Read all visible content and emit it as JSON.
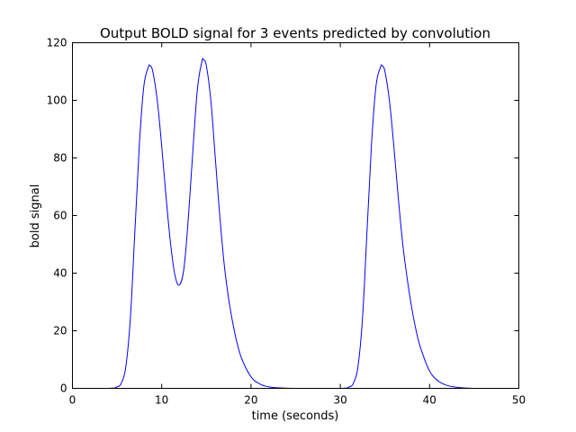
{
  "chart_data": {
    "type": "line",
    "title": "Output BOLD signal for 3 events predicted by convolution",
    "xlabel": "time (seconds)",
    "ylabel": "bold signal",
    "xlim": [
      0,
      50
    ],
    "ylim": [
      0,
      120
    ],
    "xticks": [
      0,
      10,
      20,
      30,
      40,
      50
    ],
    "yticks": [
      0,
      20,
      40,
      60,
      80,
      100,
      120
    ],
    "grid": false,
    "legend": "none",
    "series_color": "#0000ff",
    "series": [
      {
        "x": [
          0,
          4,
          5,
          5.5,
          6,
          6.5,
          7,
          7.5,
          8,
          8.5,
          8.7,
          9,
          9.5,
          10,
          10.5,
          11,
          11.5,
          12,
          12.5,
          13,
          13.5,
          14,
          14.5,
          14.7,
          15,
          15.5,
          16,
          16.5,
          17,
          17.5,
          18,
          18.5,
          19,
          20,
          21,
          22,
          23,
          25,
          30,
          31,
          31.5,
          32,
          32.5,
          33,
          33.5,
          34,
          34.5,
          34.7,
          35,
          35.5,
          36,
          36.5,
          37,
          37.5,
          38,
          38.5,
          39,
          40,
          41,
          42,
          43,
          45,
          50
        ],
        "y": [
          0,
          0,
          0.5,
          2,
          8,
          25,
          55,
          85,
          105,
          111.5,
          112,
          110,
          100,
          84,
          66,
          50,
          39,
          36,
          42,
          60,
          83,
          104,
          113.5,
          114,
          112,
          100,
          80,
          60,
          43,
          31,
          22,
          15,
          10,
          4,
          1.5,
          0.5,
          0.2,
          0,
          0,
          0.5,
          2,
          8,
          25,
          55,
          85,
          105,
          111.5,
          112,
          110,
          100,
          84,
          66,
          50,
          38,
          28,
          20,
          14,
          6,
          2.5,
          1,
          0.4,
          0,
          0
        ]
      }
    ]
  }
}
